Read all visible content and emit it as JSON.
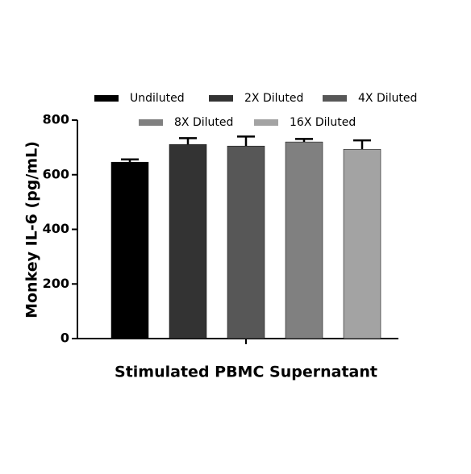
{
  "chart_data": {
    "type": "bar",
    "categories": [
      "Stimulated PBMC Supernatant"
    ],
    "x_label": "Stimulated PBMC Supernatant",
    "y_label": "Monkey IL-6 (pg/mL)",
    "series": [
      {
        "name": "Undiluted",
        "color": "#000000",
        "values": [
          646
        ],
        "errors": [
          10
        ]
      },
      {
        "name": "2X Diluted",
        "color": "#333333",
        "values": [
          711
        ],
        "errors": [
          23
        ]
      },
      {
        "name": "4X Diluted",
        "color": "#575757",
        "values": [
          705
        ],
        "errors": [
          35
        ]
      },
      {
        "name": "8X Diluted",
        "color": "#808080",
        "values": [
          720
        ],
        "errors": [
          11
        ]
      },
      {
        "name": "16X Diluted",
        "color": "#a3a3a3",
        "values": [
          693
        ],
        "errors": [
          33
        ]
      }
    ],
    "ylim": [
      0,
      800
    ],
    "yticks": [
      0,
      200,
      400,
      600,
      800
    ],
    "grid": false
  }
}
